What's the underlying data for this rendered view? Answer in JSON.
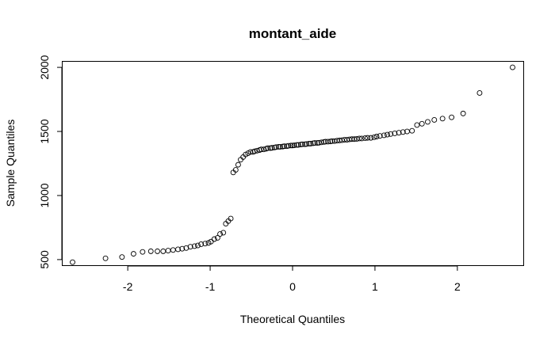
{
  "chart_data": {
    "type": "scatter",
    "title": "montant_aide",
    "xlabel": "Theoretical Quantiles",
    "ylabel": "Sample Quantiles",
    "xlim": [
      -2.8,
      2.8
    ],
    "ylim": [
      450,
      2050
    ],
    "xticks": [
      -2,
      -1,
      0,
      1,
      2
    ],
    "xtick_labels": [
      "-2",
      "-1",
      "0",
      "1",
      "2"
    ],
    "yticks": [
      500,
      1000,
      1500,
      2000
    ],
    "ytick_labels": [
      "500",
      "1000",
      "1500",
      "2000"
    ],
    "grid": false,
    "x": [
      -2.67,
      -2.27,
      -2.07,
      -1.93,
      -1.82,
      -1.72,
      -1.64,
      -1.57,
      -1.51,
      -1.45,
      -1.39,
      -1.34,
      -1.29,
      -1.24,
      -1.19,
      -1.15,
      -1.11,
      -1.06,
      -1.02,
      -0.99,
      -0.95,
      -0.91,
      -0.88,
      -0.84,
      -0.81,
      -0.78,
      -0.75,
      -0.72,
      -0.69,
      -0.66,
      -0.63,
      -0.6,
      -0.57,
      -0.54,
      -0.51,
      -0.48,
      -0.46,
      -0.43,
      -0.4,
      -0.38,
      -0.35,
      -0.32,
      -0.3,
      -0.27,
      -0.25,
      -0.22,
      -0.2,
      -0.17,
      -0.15,
      -0.12,
      -0.1,
      -0.07,
      -0.05,
      -0.02,
      0.0,
      0.02,
      0.05,
      0.07,
      0.1,
      0.12,
      0.15,
      0.17,
      0.2,
      0.22,
      0.25,
      0.27,
      0.3,
      0.32,
      0.35,
      0.38,
      0.4,
      0.43,
      0.46,
      0.48,
      0.51,
      0.54,
      0.57,
      0.6,
      0.63,
      0.66,
      0.69,
      0.72,
      0.75,
      0.78,
      0.81,
      0.84,
      0.88,
      0.91,
      0.95,
      0.99,
      1.02,
      1.06,
      1.11,
      1.15,
      1.19,
      1.24,
      1.29,
      1.34,
      1.39,
      1.45,
      1.51,
      1.57,
      1.64,
      1.72,
      1.82,
      1.93,
      2.07,
      2.27,
      2.67
    ],
    "y": [
      480,
      510,
      520,
      545,
      560,
      565,
      565,
      565,
      570,
      575,
      580,
      585,
      590,
      600,
      605,
      610,
      620,
      625,
      630,
      640,
      660,
      670,
      700,
      710,
      780,
      800,
      820,
      1180,
      1200,
      1240,
      1280,
      1300,
      1320,
      1330,
      1340,
      1340,
      1345,
      1350,
      1355,
      1360,
      1360,
      1365,
      1370,
      1370,
      1372,
      1375,
      1378,
      1380,
      1380,
      1382,
      1385,
      1385,
      1388,
      1390,
      1390,
      1392,
      1395,
      1395,
      1398,
      1400,
      1400,
      1402,
      1405,
      1405,
      1408,
      1410,
      1410,
      1412,
      1415,
      1418,
      1420,
      1420,
      1422,
      1425,
      1425,
      1428,
      1430,
      1432,
      1435,
      1435,
      1438,
      1440,
      1440,
      1442,
      1445,
      1445,
      1448,
      1450,
      1450,
      1455,
      1460,
      1465,
      1470,
      1475,
      1480,
      1485,
      1490,
      1495,
      1500,
      1505,
      1550,
      1560,
      1575,
      1590,
      1600,
      1610,
      1640,
      1800,
      2000
    ]
  }
}
